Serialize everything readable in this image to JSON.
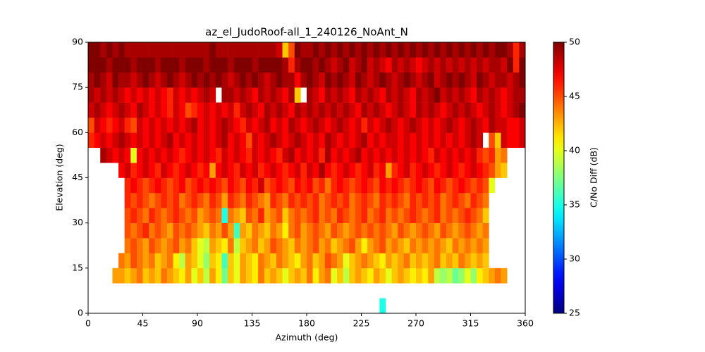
{
  "chart_data": {
    "type": "heatmap",
    "title": "az_el_JudoRoof-all_1_240126_NoAnt_N",
    "x_label": "Azimuth (deg)",
    "y_label": "Elevation (deg)",
    "colorbar_label": "C/No Diff (dB)",
    "colormap": "jet",
    "xlim": [
      0,
      360
    ],
    "ylim": [
      0,
      90
    ],
    "zlim": [
      25,
      50
    ],
    "xticks": [
      0,
      45,
      90,
      135,
      180,
      225,
      270,
      315,
      360
    ],
    "yticks": [
      0,
      15,
      30,
      45,
      60,
      75,
      90
    ],
    "zticks": [
      25,
      30,
      35,
      40,
      45,
      50
    ],
    "xbins": [
      0,
      5,
      10,
      15,
      20,
      25,
      30,
      35,
      40,
      45,
      50,
      55,
      60,
      65,
      70,
      75,
      80,
      85,
      90,
      95,
      100,
      105,
      110,
      115,
      120,
      125,
      130,
      135,
      140,
      145,
      150,
      155,
      160,
      165,
      170,
      175,
      180,
      185,
      190,
      195,
      200,
      205,
      210,
      215,
      220,
      225,
      230,
      235,
      240,
      245,
      250,
      255,
      260,
      265,
      270,
      275,
      280,
      285,
      290,
      295,
      300,
      305,
      310,
      315,
      320,
      325,
      330,
      335,
      340,
      345,
      350,
      355,
      360
    ],
    "ybins": [
      0,
      5,
      10,
      15,
      20,
      25,
      30,
      35,
      40,
      45,
      50,
      55,
      60,
      65,
      70,
      75,
      80,
      85,
      90
    ],
    "z": [
      [
        null,
        null,
        null,
        null,
        null,
        null,
        null,
        null,
        null,
        null,
        null,
        null,
        null,
        null,
        null,
        null,
        null,
        null,
        null,
        null,
        null,
        null,
        null,
        null,
        null,
        null,
        null,
        null,
        null,
        null,
        null,
        null,
        null,
        null,
        null,
        null,
        null,
        null,
        null,
        null,
        null,
        null,
        null,
        null,
        null,
        null,
        null,
        null,
        35,
        null,
        null,
        null,
        null,
        null,
        null,
        null,
        null,
        null,
        null,
        null,
        null,
        null,
        null,
        null,
        null,
        null,
        null,
        null,
        null,
        null,
        null,
        null
      ],
      [
        null,
        null,
        null,
        null,
        null,
        null,
        null,
        null,
        null,
        null,
        null,
        null,
        null,
        null,
        null,
        null,
        null,
        null,
        null,
        null,
        null,
        null,
        null,
        null,
        null,
        null,
        null,
        null,
        null,
        null,
        null,
        null,
        null,
        null,
        null,
        null,
        null,
        null,
        null,
        null,
        null,
        null,
        null,
        null,
        null,
        null,
        null,
        null,
        null,
        null,
        null,
        null,
        null,
        null,
        null,
        null,
        null,
        null,
        null,
        null,
        null,
        null,
        null,
        null,
        null,
        null,
        null,
        null,
        null,
        null,
        null,
        null
      ],
      [
        null,
        null,
        null,
        null,
        43,
        43,
        42,
        43,
        44,
        42,
        43,
        42,
        44,
        43,
        42,
        41,
        43,
        40,
        42,
        39,
        43,
        41,
        37,
        42,
        40,
        43,
        42,
        41,
        44,
        42,
        43,
        42,
        40,
        42,
        43,
        42,
        44,
        41,
        43,
        44,
        40,
        42,
        39,
        42,
        43,
        42,
        41,
        43,
        42,
        40,
        42,
        43,
        42,
        41,
        42,
        41,
        43,
        39,
        38,
        39,
        37,
        38,
        40,
        38,
        41,
        42,
        43,
        44,
        43,
        null,
        null,
        null
      ],
      [
        null,
        null,
        null,
        null,
        null,
        44,
        43,
        45,
        44,
        43,
        44,
        42,
        43,
        44,
        41,
        39,
        43,
        42,
        40,
        38,
        42,
        41,
        36,
        42,
        40,
        43,
        42,
        41,
        44,
        43,
        42,
        44,
        43,
        42,
        41,
        43,
        44,
        42,
        43,
        45,
        44,
        43,
        40,
        42,
        43,
        44,
        43,
        42,
        41,
        43,
        42,
        43,
        44,
        42,
        43,
        42,
        43,
        44,
        42,
        43,
        42,
        44,
        43,
        42,
        43,
        42,
        null,
        null,
        null,
        null,
        null,
        null
      ],
      [
        null,
        null,
        null,
        null,
        null,
        null,
        44,
        45,
        44,
        43,
        45,
        44,
        43,
        44,
        45,
        43,
        44,
        42,
        40,
        39,
        43,
        42,
        41,
        44,
        39,
        42,
        43,
        44,
        42,
        43,
        45,
        44,
        43,
        42,
        44,
        43,
        44,
        45,
        43,
        44,
        42,
        43,
        44,
        45,
        43,
        41,
        43,
        44,
        45,
        43,
        44,
        43,
        42,
        44,
        43,
        44,
        43,
        44,
        43,
        42,
        44,
        43,
        44,
        43,
        44,
        43,
        null,
        null,
        null,
        null,
        null,
        null
      ],
      [
        null,
        null,
        null,
        null,
        null,
        null,
        45,
        44,
        45,
        46,
        44,
        45,
        44,
        43,
        45,
        44,
        45,
        44,
        43,
        42,
        44,
        43,
        45,
        43,
        36,
        43,
        42,
        44,
        43,
        42,
        44,
        43,
        41,
        44,
        45,
        43,
        44,
        45,
        44,
        43,
        45,
        44,
        43,
        44,
        45,
        44,
        45,
        44,
        45,
        44,
        43,
        45,
        44,
        43,
        44,
        45,
        44,
        43,
        45,
        44,
        43,
        44,
        45,
        44,
        43,
        44,
        null,
        null,
        null,
        null,
        null,
        null
      ],
      [
        null,
        null,
        null,
        null,
        null,
        null,
        45,
        46,
        45,
        44,
        46,
        45,
        44,
        45,
        46,
        45,
        44,
        45,
        43,
        44,
        45,
        44,
        35,
        44,
        43,
        42,
        45,
        44,
        46,
        43,
        44,
        45,
        42,
        44,
        45,
        44,
        45,
        46,
        44,
        45,
        44,
        46,
        45,
        44,
        45,
        46,
        44,
        45,
        46,
        44,
        45,
        44,
        45,
        46,
        45,
        44,
        45,
        46,
        44,
        45,
        44,
        45,
        46,
        45,
        44,
        42,
        null,
        null,
        null,
        null,
        null,
        null
      ],
      [
        null,
        null,
        null,
        null,
        null,
        null,
        46,
        45,
        46,
        45,
        44,
        45,
        46,
        45,
        46,
        44,
        45,
        46,
        45,
        44,
        46,
        45,
        43,
        46,
        45,
        44,
        46,
        45,
        44,
        43,
        46,
        45,
        44,
        46,
        45,
        46,
        45,
        46,
        44,
        45,
        46,
        45,
        46,
        44,
        45,
        46,
        45,
        44,
        46,
        45,
        46,
        45,
        44,
        46,
        45,
        46,
        45,
        46,
        44,
        45,
        46,
        45,
        44,
        46,
        45,
        44,
        null,
        null,
        null,
        null,
        null,
        null
      ],
      [
        null,
        null,
        null,
        null,
        null,
        null,
        46,
        47,
        46,
        45,
        46,
        47,
        46,
        45,
        46,
        47,
        45,
        46,
        47,
        46,
        47,
        46,
        45,
        47,
        46,
        45,
        47,
        46,
        48,
        45,
        46,
        47,
        46,
        45,
        47,
        46,
        47,
        45,
        46,
        44,
        46,
        47,
        46,
        45,
        46,
        47,
        46,
        45,
        47,
        46,
        47,
        46,
        45,
        46,
        47,
        46,
        45,
        47,
        46,
        45,
        46,
        47,
        46,
        45,
        46,
        45,
        40,
        null,
        null,
        null,
        null,
        null
      ],
      [
        null,
        null,
        null,
        null,
        null,
        47,
        48,
        46,
        47,
        48,
        47,
        46,
        48,
        47,
        46,
        47,
        48,
        47,
        46,
        47,
        43,
        47,
        48,
        47,
        46,
        48,
        47,
        48,
        46,
        47,
        48,
        47,
        46,
        47,
        48,
        46,
        48,
        47,
        49,
        47,
        46,
        47,
        48,
        47,
        46,
        47,
        48,
        46,
        47,
        43,
        46,
        47,
        48,
        46,
        47,
        48,
        47,
        46,
        47,
        48,
        47,
        46,
        47,
        48,
        47,
        46,
        45,
        43,
        42,
        null,
        null,
        null
      ],
      [
        null,
        null,
        49,
        48,
        47,
        48,
        47,
        40,
        47,
        48,
        47,
        48,
        47,
        48,
        47,
        46,
        47,
        48,
        47,
        48,
        47,
        46,
        48,
        47,
        48,
        47,
        46,
        48,
        47,
        48,
        47,
        46,
        48,
        49,
        47,
        48,
        47,
        48,
        46,
        49,
        47,
        48,
        47,
        48,
        49,
        47,
        48,
        47,
        48,
        47,
        48,
        47,
        48,
        47,
        48,
        47,
        46,
        48,
        47,
        48,
        47,
        48,
        47,
        48,
        46,
        45,
        46,
        43,
        44,
        null,
        null,
        null
      ],
      [
        46,
        47,
        48,
        47,
        48,
        49,
        48,
        47,
        48,
        47,
        48,
        47,
        48,
        49,
        47,
        48,
        47,
        48,
        47,
        48,
        47,
        48,
        49,
        47,
        48,
        47,
        45,
        48,
        47,
        48,
        49,
        48,
        47,
        48,
        49,
        48,
        47,
        48,
        47,
        49,
        48,
        47,
        48,
        47,
        48,
        49,
        47,
        48,
        47,
        48,
        48,
        47,
        48,
        47,
        48,
        47,
        48,
        47,
        48,
        47,
        48,
        47,
        48,
        49,
        48,
        null,
        45,
        42,
        48,
        47,
        47,
        48
      ],
      [
        45,
        48,
        47,
        46,
        47,
        48,
        46,
        45,
        48,
        47,
        48,
        47,
        48,
        47,
        48,
        47,
        48,
        49,
        47,
        48,
        47,
        48,
        49,
        48,
        47,
        46,
        48,
        47,
        48,
        49,
        47,
        48,
        47,
        49,
        48,
        47,
        48,
        49,
        48,
        47,
        48,
        49,
        48,
        47,
        48,
        46,
        48,
        47,
        48,
        49,
        48,
        47,
        48,
        49,
        48,
        47,
        48,
        47,
        48,
        49,
        48,
        47,
        48,
        49,
        48,
        47,
        49,
        48,
        48,
        47,
        47,
        48
      ],
      [
        48,
        49,
        48,
        47,
        48,
        49,
        48,
        47,
        49,
        48,
        47,
        48,
        47,
        46,
        48,
        47,
        45,
        46,
        47,
        48,
        47,
        48,
        47,
        48,
        46,
        48,
        49,
        48,
        47,
        49,
        48,
        49,
        48,
        47,
        49,
        48,
        49,
        48,
        49,
        48,
        49,
        48,
        49,
        48,
        47,
        49,
        48,
        49,
        48,
        47,
        48,
        49,
        48,
        47,
        49,
        48,
        49,
        48,
        47,
        48,
        49,
        48,
        49,
        48,
        47,
        48,
        49,
        48,
        47,
        48,
        49,
        50
      ],
      [
        49,
        48,
        49,
        48,
        49,
        48,
        47,
        48,
        47,
        48,
        47,
        48,
        47,
        46,
        48,
        47,
        48,
        47,
        48,
        49,
        48,
        null,
        49,
        49,
        48,
        49,
        48,
        47,
        49,
        48,
        49,
        48,
        47,
        49,
        42,
        null,
        49,
        48,
        47,
        49,
        48,
        49,
        48,
        47,
        49,
        48,
        49,
        48,
        47,
        49,
        48,
        49,
        48,
        47,
        49,
        48,
        49,
        50,
        48,
        49,
        48,
        49,
        48,
        47,
        49,
        48,
        49,
        48,
        47,
        48,
        49,
        49
      ],
      [
        49,
        50,
        49,
        48,
        50,
        49,
        49,
        48,
        49,
        50,
        49,
        48,
        49,
        50,
        49,
        48,
        49,
        50,
        49,
        50,
        49,
        50,
        49,
        48,
        49,
        50,
        49,
        50,
        49,
        48,
        49,
        50,
        49,
        49,
        47,
        49,
        50,
        49,
        48,
        50,
        49,
        50,
        49,
        48,
        50,
        49,
        48,
        49,
        50,
        49,
        48,
        49,
        50,
        49,
        48,
        49,
        50,
        48,
        49,
        50,
        49,
        50,
        49,
        48,
        50,
        49,
        48,
        49,
        49,
        48,
        49,
        50
      ],
      [
        50,
        50,
        50,
        49,
        50,
        50,
        50,
        49,
        50,
        50,
        50,
        49,
        50,
        50,
        50,
        49,
        50,
        50,
        50,
        49,
        50,
        50,
        50,
        49,
        50,
        50,
        50,
        49,
        50,
        50,
        50,
        50,
        49,
        46,
        49,
        50,
        50,
        49,
        50,
        49,
        48,
        49,
        50,
        48,
        49,
        50,
        48,
        49,
        48,
        47,
        49,
        48,
        49,
        48,
        47,
        48,
        49,
        48,
        49,
        48,
        49,
        48,
        49,
        48,
        49,
        48,
        49,
        49,
        48,
        50,
        46,
        50
      ],
      [
        50,
        50,
        49,
        50,
        49,
        50,
        49,
        49,
        49,
        49,
        49,
        49,
        49,
        49,
        49,
        49,
        49,
        49,
        49,
        49,
        50,
        49,
        49,
        49,
        49,
        49,
        49,
        49,
        49,
        49,
        49,
        48,
        42,
        45,
        50,
        49,
        49,
        50,
        49,
        50,
        49,
        50,
        49,
        50,
        49,
        50,
        49,
        50,
        49,
        50,
        49,
        50,
        49,
        50,
        49,
        50,
        49,
        50,
        49,
        50,
        49,
        50,
        49,
        50,
        49,
        50,
        49,
        50,
        50,
        49,
        46,
        49
      ]
    ]
  }
}
